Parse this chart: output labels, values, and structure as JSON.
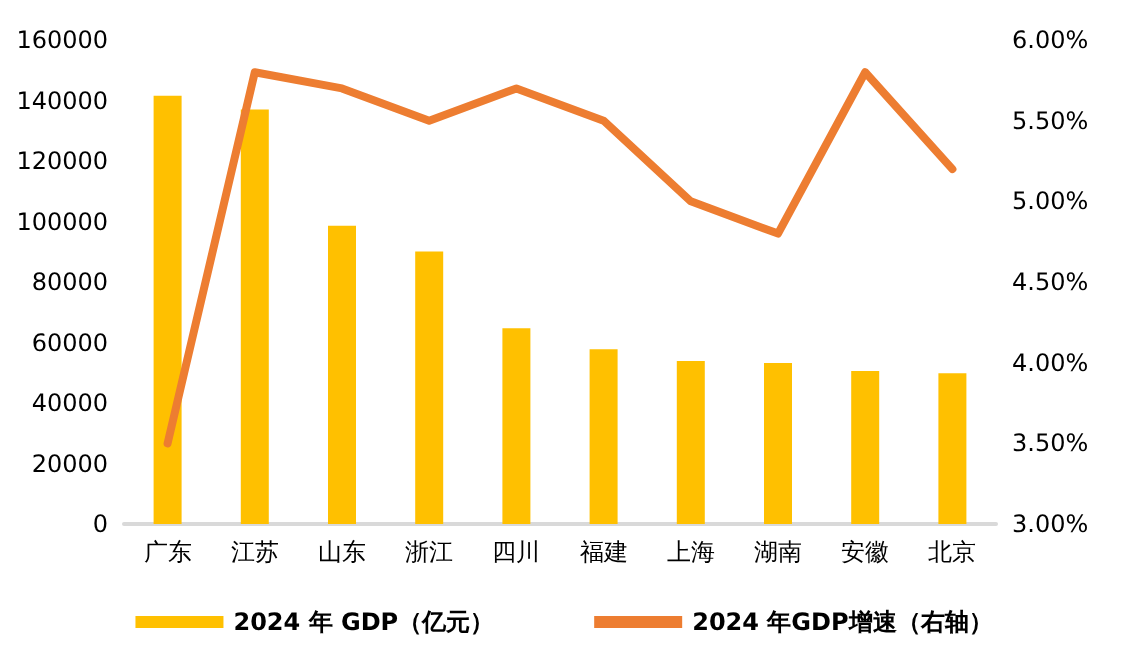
{
  "chart_data": {
    "type": "bar",
    "categories": [
      "广东",
      "江苏",
      "山东",
      "浙江",
      "四川",
      "福建",
      "上海",
      "湖南",
      "安徽",
      "北京"
    ],
    "series": [
      {
        "name": "2024 年 GDP（亿元）",
        "color": "#ffc000",
        "values": [
          141600,
          137000,
          98600,
          90100,
          64700,
          57800,
          53900,
          53200,
          50600,
          49800
        ]
      },
      {
        "name": "2024 年GDP增速（右轴）",
        "type": "line",
        "axis": "y2",
        "color": "#ed7d31",
        "values": [
          3.5,
          5.8,
          5.7,
          5.5,
          5.7,
          5.5,
          5.0,
          4.8,
          5.8,
          5.2
        ]
      }
    ],
    "ylim": [
      0,
      160000
    ],
    "yticks": [
      0,
      20000,
      40000,
      60000,
      80000,
      100000,
      120000,
      140000,
      160000
    ],
    "y2lim": [
      3,
      6
    ],
    "y2ticks": [
      {
        "value": 3,
        "label": "3.00%"
      },
      {
        "value": 3.5,
        "label": "3.50%"
      },
      {
        "value": 4,
        "label": "4.00%"
      },
      {
        "value": 4.5,
        "label": "4.50%"
      },
      {
        "value": 5,
        "label": "5.00%"
      },
      {
        "value": 5.5,
        "label": "5.50%"
      },
      {
        "value": 6,
        "label": "6.00%"
      }
    ],
    "grid": false,
    "legend": "bottom",
    "marker": "none",
    "line_style": "solid"
  }
}
